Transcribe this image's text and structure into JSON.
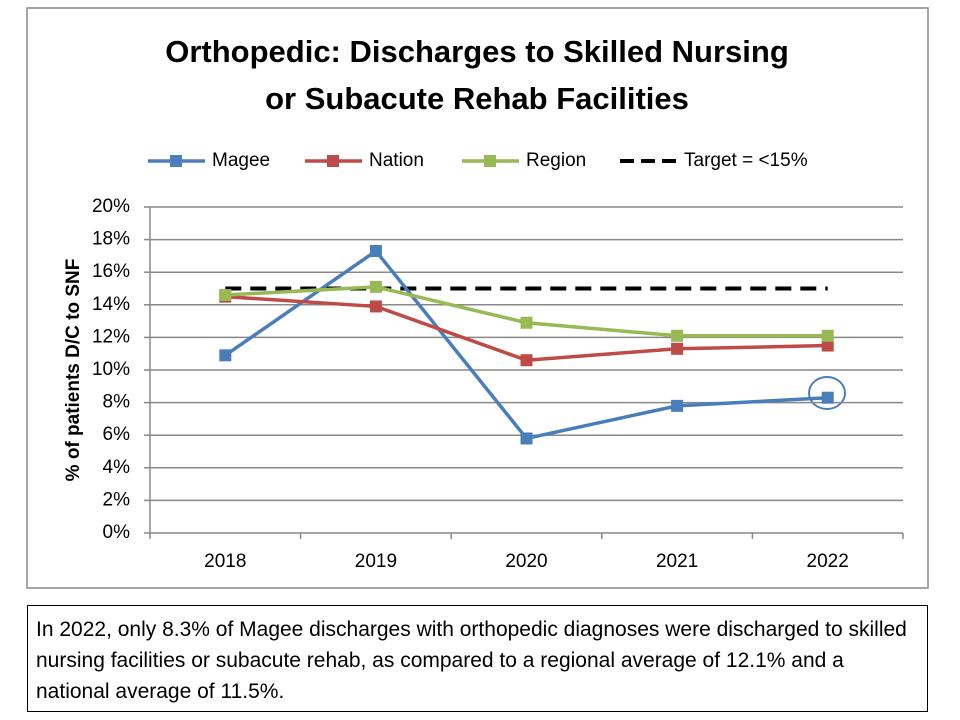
{
  "chart_data": {
    "type": "line",
    "title": [
      "Orthopedic: Discharges to Skilled Nursing",
      "or Subacute Rehab Facilities"
    ],
    "y_label": "% of patients D/C to SNF",
    "categories": [
      "2018",
      "2019",
      "2020",
      "2021",
      "2022"
    ],
    "series": [
      {
        "name": "Magee",
        "color": "#4a7ebb",
        "marker": true,
        "dashed": false,
        "values": [
          10.9,
          17.3,
          5.8,
          7.8,
          8.3
        ]
      },
      {
        "name": "Nation",
        "color": "#be4b48",
        "marker": true,
        "dashed": false,
        "values": [
          14.5,
          13.9,
          10.6,
          11.3,
          11.5
        ]
      },
      {
        "name": "Region",
        "color": "#98b954",
        "marker": true,
        "dashed": false,
        "values": [
          14.6,
          15.1,
          12.9,
          12.1,
          12.1
        ]
      },
      {
        "name": "Target = <15%",
        "color": "#000000",
        "marker": false,
        "dashed": true,
        "values": [
          15,
          15,
          15,
          15,
          15
        ]
      }
    ],
    "ylim": [
      0,
      20
    ],
    "yticks": [
      {
        "value": 0,
        "label": "0%"
      },
      {
        "value": 2,
        "label": "2%"
      },
      {
        "value": 4,
        "label": "4%"
      },
      {
        "value": 6,
        "label": "6%"
      },
      {
        "value": 8,
        "label": "8%"
      },
      {
        "value": 10,
        "label": "10%"
      },
      {
        "value": 12,
        "label": "12%"
      },
      {
        "value": 14,
        "label": "14%"
      },
      {
        "value": 16,
        "label": "16%"
      },
      {
        "value": 18,
        "label": "18%"
      },
      {
        "value": 20,
        "label": "20%"
      }
    ],
    "grid": true,
    "legend": "top",
    "caption": "In 2022, only 8.3% of Magee discharges with orthopedic diagnoses were discharged to skilled nursing facilities or subacute rehab, as compared to a regional average of 12.1% and a national average of 11.5%."
  }
}
